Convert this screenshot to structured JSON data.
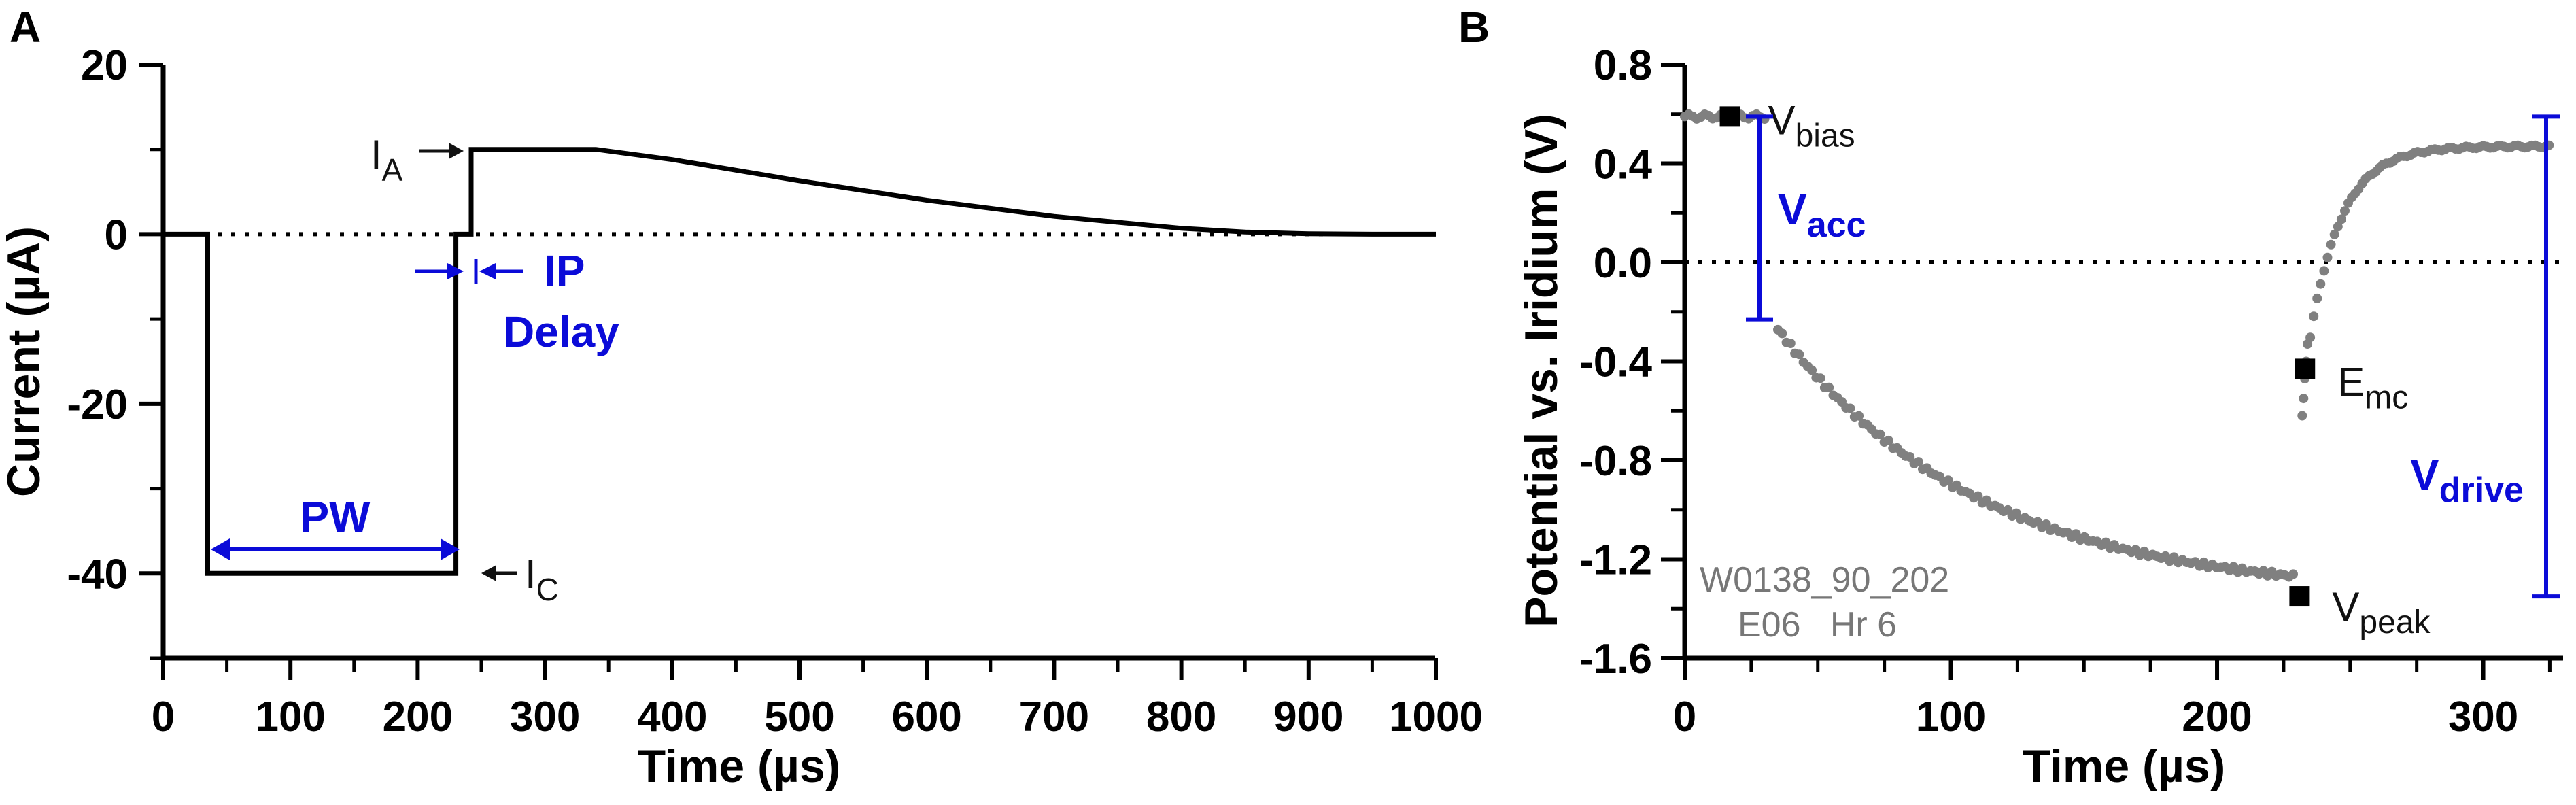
{
  "colors": {
    "axis": "#000000",
    "annotation_blue": "#0b0bd8",
    "sample_gray": "#808080"
  },
  "chart_data": [
    {
      "panel": "A",
      "type": "line",
      "xlabel": "Time (µs)",
      "ylabel": "Current (µA)",
      "xlim": [
        0,
        1000
      ],
      "ylim": [
        -50,
        20
      ],
      "x_ticks": [
        0,
        100,
        200,
        300,
        400,
        500,
        600,
        700,
        800,
        900,
        1000
      ],
      "y_ticks": [
        -40,
        -20,
        0,
        20
      ],
      "x_tick_labels": [
        "0",
        "100",
        "200",
        "300",
        "400",
        "500",
        "600",
        "700",
        "800",
        "900",
        "1000"
      ],
      "y_tick_labels": [
        "-40",
        "-20",
        "0",
        "20"
      ],
      "zero_line": "dotted",
      "series": [
        {
          "x": [
            0,
            35,
            35,
            230,
            230,
            242,
            242,
            340,
            400,
            500,
            600,
            700,
            800,
            850,
            900,
            950,
            1000
          ],
          "y": [
            0,
            0,
            -40,
            -40,
            0,
            0,
            10,
            10,
            8.8,
            6.3,
            4.0,
            2.1,
            0.7,
            0.25,
            0.05,
            0,
            0
          ]
        }
      ],
      "annotations": {
        "ia_main": "I",
        "ia_sub": "A",
        "ic_main": "I",
        "ic_sub": "C",
        "pw": "PW",
        "ip_line1": "IP",
        "ip_line2": "Delay"
      }
    },
    {
      "panel": "B",
      "type": "scatter",
      "xlabel": "Time (µs)",
      "ylabel": "Potential vs. Iridium (V)",
      "xlim": [
        0,
        330
      ],
      "ylim": [
        -1.6,
        0.8
      ],
      "x_ticks": [
        0,
        100,
        200,
        300
      ],
      "y_ticks": [
        -1.6,
        -1.2,
        -0.8,
        -0.4,
        0.0,
        0.4,
        0.8
      ],
      "x_tick_labels": [
        "0",
        "100",
        "200",
        "300"
      ],
      "y_tick_labels": [
        "-1.6",
        "-1.2",
        "-0.8",
        "-0.4",
        "0.0",
        "0.4",
        "0.8"
      ],
      "zero_line": "dotted",
      "markers": [
        {
          "name": "V",
          "sub": "bias",
          "x": 17,
          "y": 0.59
        },
        {
          "name": "E",
          "sub": "mc",
          "x": 233,
          "y": -0.43
        },
        {
          "name": "V",
          "sub": "peak",
          "x": 231,
          "y": -1.35
        }
      ],
      "brackets": [
        {
          "name": "V",
          "sub": "acc",
          "y_top": 0.59,
          "y_bottom": -0.23
        },
        {
          "name": "V",
          "sub": "drive",
          "y_top": 0.59,
          "y_bottom": -1.35
        }
      ],
      "sample_label_line1": "W0138_90_202",
      "sample_label_line2": "E06   Hr 6"
    }
  ]
}
